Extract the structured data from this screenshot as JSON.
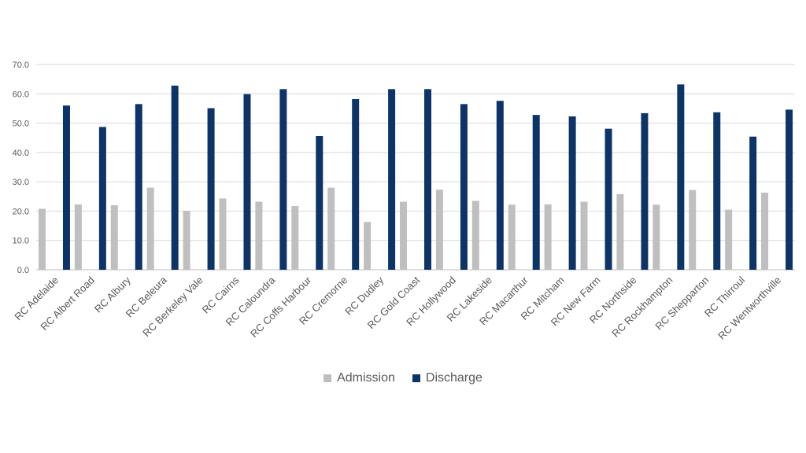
{
  "chart_data": {
    "type": "bar",
    "categories": [
      "RC Adelaide",
      "RC Albert Road",
      "RC Albury",
      "RC Beleura",
      "RC Berkeley Vale",
      "RC Cairns",
      "RC Caloundra",
      "RC Coffs Harbour",
      "RC Cremorne",
      "RC Dudley",
      "RC Gold Coast",
      "RC Hollywood",
      "RC Lakeside",
      "RC Macarthur",
      "RC Mitcham",
      "RC New Farm",
      "RC Northside",
      "RC Rockhampton",
      "RC Shepparton",
      "RC Thirroul",
      "RC Wentworthville"
    ],
    "series": [
      {
        "name": "Admission",
        "color": "#bfbfbf",
        "values": [
          20.8,
          22.3,
          22.0,
          28.0,
          20.1,
          24.3,
          23.2,
          21.7,
          28.0,
          16.3,
          23.2,
          27.3,
          23.5,
          22.2,
          22.3,
          23.2,
          25.8,
          22.2,
          27.2,
          20.5,
          26.3
        ]
      },
      {
        "name": "Discharge",
        "color": "#0d3468",
        "values": [
          56.0,
          48.7,
          56.5,
          62.8,
          55.1,
          59.9,
          61.6,
          45.6,
          58.2,
          61.6,
          61.6,
          56.5,
          57.6,
          52.8,
          52.3,
          48.1,
          53.4,
          63.2,
          53.7,
          45.4,
          54.6
        ]
      }
    ],
    "yticks": [
      "0.0",
      "10.0",
      "20.0",
      "30.0",
      "40.0",
      "50.0",
      "60.0",
      "70.0"
    ],
    "ylim": [
      0,
      70
    ],
    "grid": true,
    "legend_position": "bottom",
    "title": "",
    "xlabel": "",
    "ylabel": ""
  },
  "legend": {
    "items": [
      {
        "label": "Admission",
        "color": "#bfbfbf"
      },
      {
        "label": "Discharge",
        "color": "#0d3468"
      }
    ]
  }
}
